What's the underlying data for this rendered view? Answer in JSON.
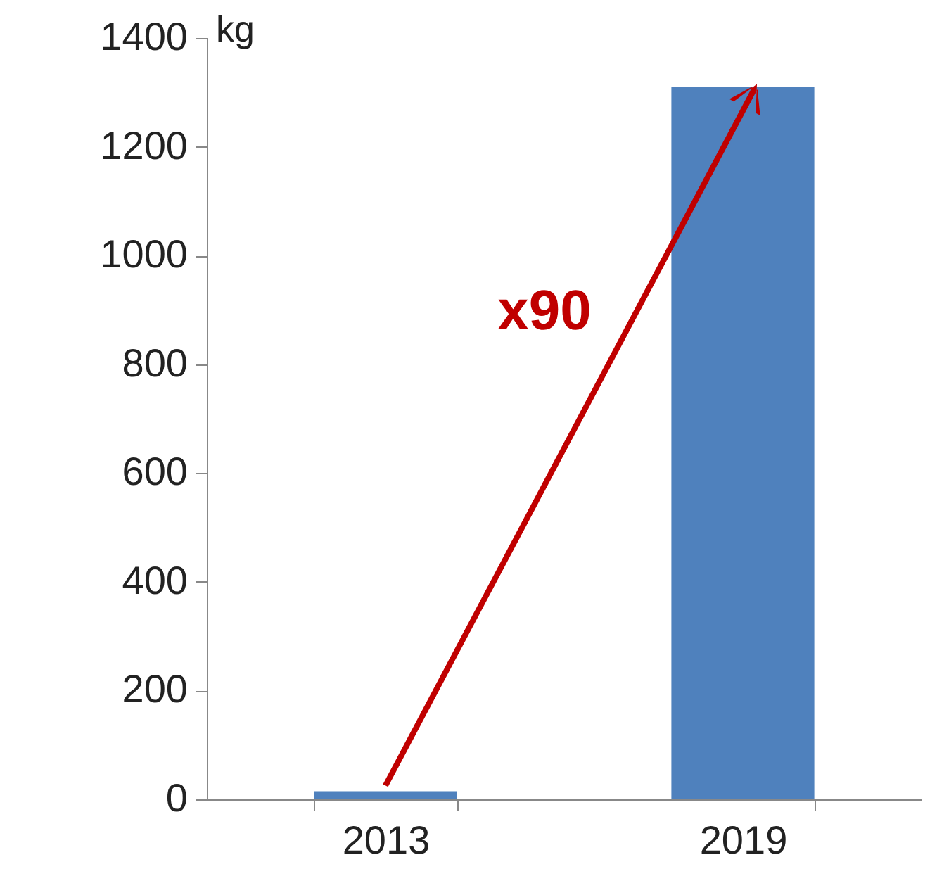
{
  "chart_data": {
    "type": "bar",
    "ylabel": "kg",
    "categories": [
      "2013",
      "2019"
    ],
    "values": [
      15,
      1310
    ],
    "color": "#4f81bd",
    "ylim": [
      0,
      1400
    ],
    "yticks": [
      0,
      200,
      400,
      600,
      800,
      1000,
      1200,
      1400
    ],
    "grid": false,
    "annotations": [
      "x90"
    ]
  }
}
